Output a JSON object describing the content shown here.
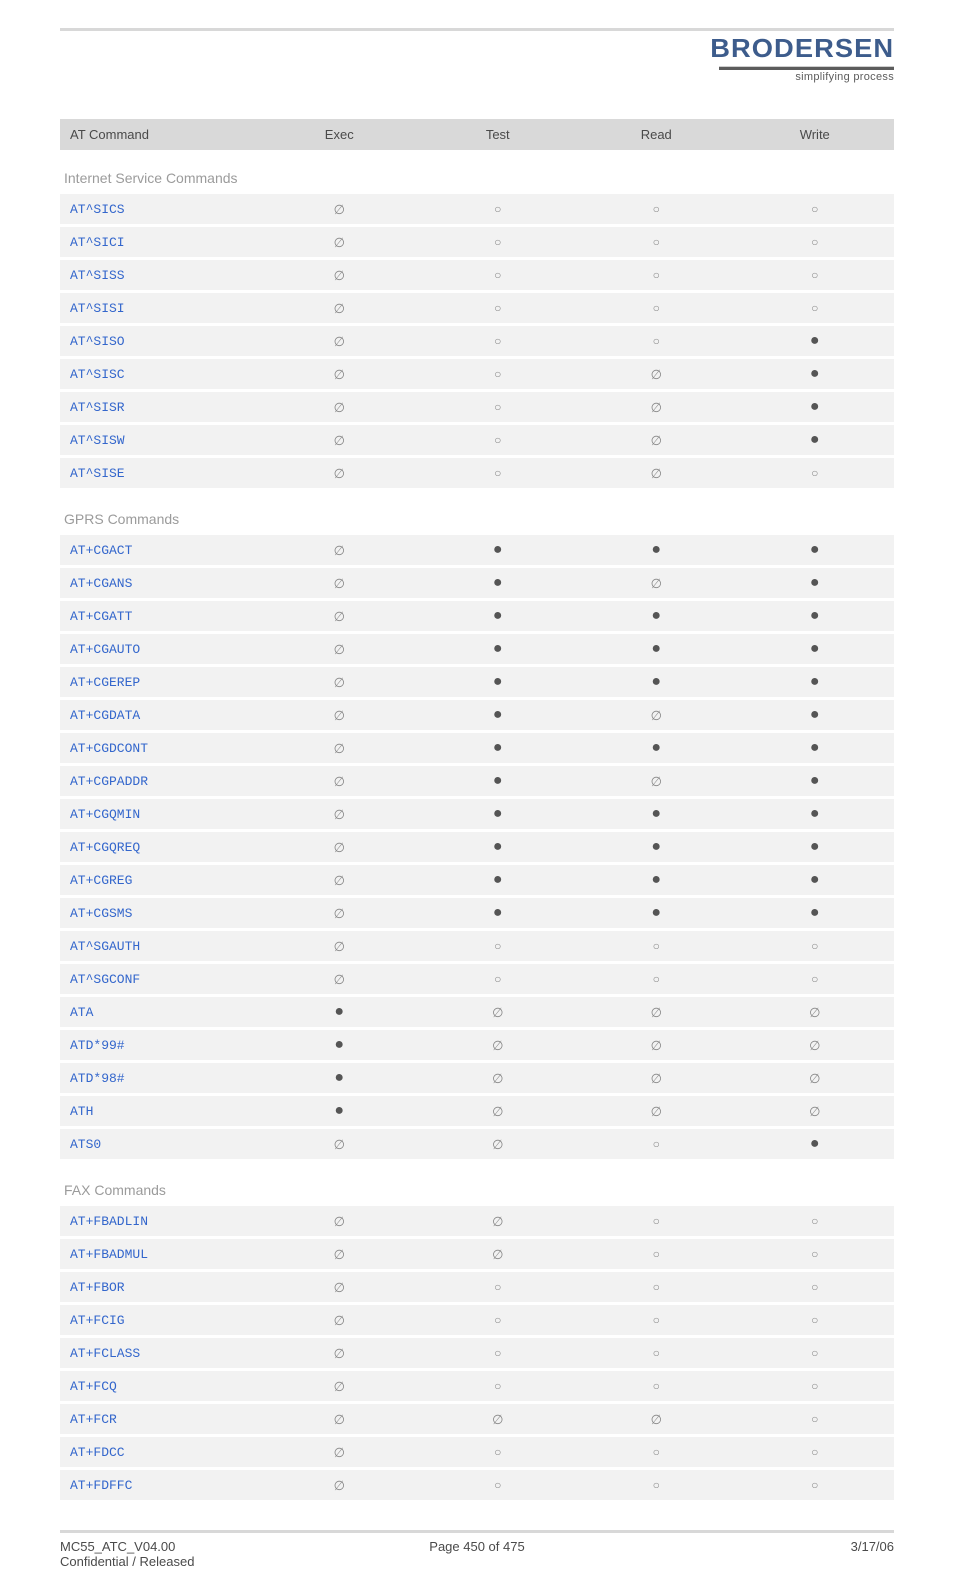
{
  "header": {
    "brand": "BRODERSEN",
    "tagline": "simplifying process"
  },
  "symbols": {
    "filled": "●",
    "empty": "○",
    "none": "∅"
  },
  "table": {
    "headers": [
      "AT Command",
      "Exec",
      "Test",
      "Read",
      "Write"
    ],
    "sections": [
      {
        "title": "Internet Service Commands",
        "rows": [
          {
            "cmd": "AT^SICS",
            "cells": [
              "none",
              "empty",
              "empty",
              "empty"
            ]
          },
          {
            "cmd": "AT^SICI",
            "cells": [
              "none",
              "empty",
              "empty",
              "empty"
            ]
          },
          {
            "cmd": "AT^SISS",
            "cells": [
              "none",
              "empty",
              "empty",
              "empty"
            ]
          },
          {
            "cmd": "AT^SISI",
            "cells": [
              "none",
              "empty",
              "empty",
              "empty"
            ]
          },
          {
            "cmd": "AT^SISO",
            "cells": [
              "none",
              "empty",
              "empty",
              "filled"
            ]
          },
          {
            "cmd": "AT^SISC",
            "cells": [
              "none",
              "empty",
              "none",
              "filled"
            ]
          },
          {
            "cmd": "AT^SISR",
            "cells": [
              "none",
              "empty",
              "none",
              "filled"
            ]
          },
          {
            "cmd": "AT^SISW",
            "cells": [
              "none",
              "empty",
              "none",
              "filled"
            ]
          },
          {
            "cmd": "AT^SISE",
            "cells": [
              "none",
              "empty",
              "none",
              "empty"
            ]
          }
        ]
      },
      {
        "title": "GPRS Commands",
        "rows": [
          {
            "cmd": "AT+CGACT",
            "cells": [
              "none",
              "filled",
              "filled",
              "filled"
            ]
          },
          {
            "cmd": "AT+CGANS",
            "cells": [
              "none",
              "filled",
              "none",
              "filled"
            ]
          },
          {
            "cmd": "AT+CGATT",
            "cells": [
              "none",
              "filled",
              "filled",
              "filled"
            ]
          },
          {
            "cmd": "AT+CGAUTO",
            "cells": [
              "none",
              "filled",
              "filled",
              "filled"
            ]
          },
          {
            "cmd": "AT+CGEREP",
            "cells": [
              "none",
              "filled",
              "filled",
              "filled"
            ]
          },
          {
            "cmd": "AT+CGDATA",
            "cells": [
              "none",
              "filled",
              "none",
              "filled"
            ]
          },
          {
            "cmd": "AT+CGDCONT",
            "cells": [
              "none",
              "filled",
              "filled",
              "filled"
            ]
          },
          {
            "cmd": "AT+CGPADDR",
            "cells": [
              "none",
              "filled",
              "none",
              "filled"
            ]
          },
          {
            "cmd": "AT+CGQMIN",
            "cells": [
              "none",
              "filled",
              "filled",
              "filled"
            ]
          },
          {
            "cmd": "AT+CGQREQ",
            "cells": [
              "none",
              "filled",
              "filled",
              "filled"
            ]
          },
          {
            "cmd": "AT+CGREG",
            "cells": [
              "none",
              "filled",
              "filled",
              "filled"
            ]
          },
          {
            "cmd": "AT+CGSMS",
            "cells": [
              "none",
              "filled",
              "filled",
              "filled"
            ]
          },
          {
            "cmd": "AT^SGAUTH",
            "cells": [
              "none",
              "empty",
              "empty",
              "empty"
            ]
          },
          {
            "cmd": "AT^SGCONF",
            "cells": [
              "none",
              "empty",
              "empty",
              "empty"
            ]
          },
          {
            "cmd": "ATA",
            "cells": [
              "filled",
              "none",
              "none",
              "none"
            ]
          },
          {
            "cmd": "ATD*99#",
            "cells": [
              "filled",
              "none",
              "none",
              "none"
            ]
          },
          {
            "cmd": "ATD*98#",
            "cells": [
              "filled",
              "none",
              "none",
              "none"
            ]
          },
          {
            "cmd": "ATH",
            "cells": [
              "filled",
              "none",
              "none",
              "none"
            ]
          },
          {
            "cmd": "ATS0",
            "cells": [
              "none",
              "none",
              "empty",
              "filled"
            ]
          }
        ]
      },
      {
        "title": "FAX Commands",
        "rows": [
          {
            "cmd": "AT+FBADLIN",
            "cells": [
              "none",
              "none",
              "empty",
              "empty"
            ]
          },
          {
            "cmd": "AT+FBADMUL",
            "cells": [
              "none",
              "none",
              "empty",
              "empty"
            ]
          },
          {
            "cmd": "AT+FBOR",
            "cells": [
              "none",
              "empty",
              "empty",
              "empty"
            ]
          },
          {
            "cmd": "AT+FCIG",
            "cells": [
              "none",
              "empty",
              "empty",
              "empty"
            ]
          },
          {
            "cmd": "AT+FCLASS",
            "cells": [
              "none",
              "empty",
              "empty",
              "empty"
            ]
          },
          {
            "cmd": "AT+FCQ",
            "cells": [
              "none",
              "empty",
              "empty",
              "empty"
            ]
          },
          {
            "cmd": "AT+FCR",
            "cells": [
              "none",
              "none",
              "none",
              "empty"
            ]
          },
          {
            "cmd": "AT+FDCC",
            "cells": [
              "none",
              "empty",
              "empty",
              "empty"
            ]
          },
          {
            "cmd": "AT+FDFFC",
            "cells": [
              "none",
              "empty",
              "empty",
              "empty"
            ]
          }
        ]
      }
    ]
  },
  "footer": {
    "left1": "MC55_ATC_V04.00",
    "left2": "Confidential / Released",
    "center": "Page 450 of 475",
    "right": "3/17/06"
  }
}
